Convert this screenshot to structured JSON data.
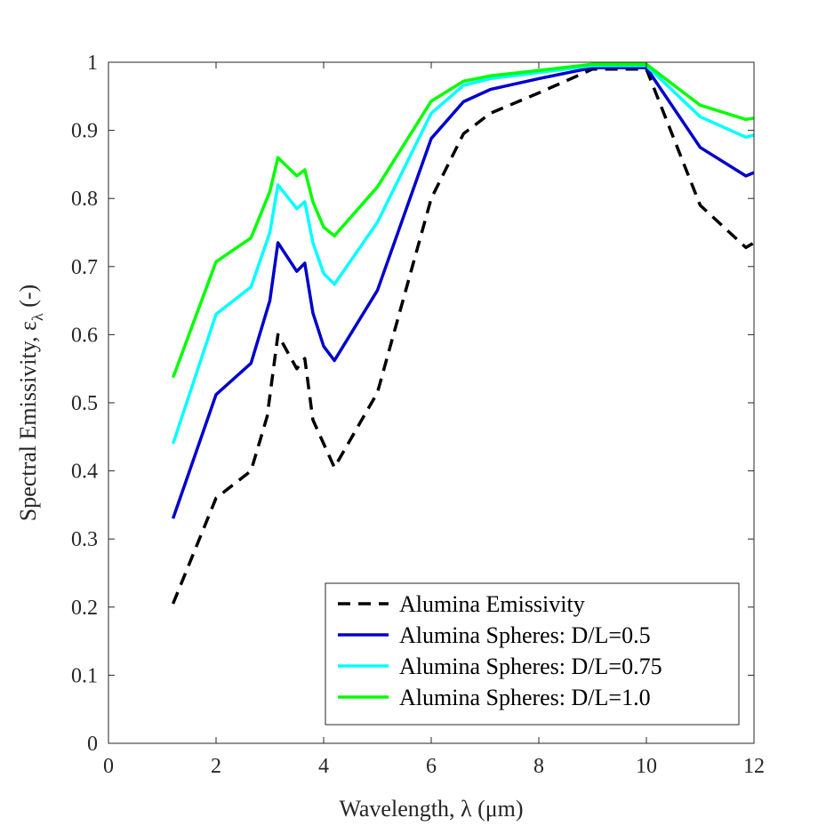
{
  "chart_data": {
    "type": "line",
    "xlabel": "Wavelength, λ (μm)",
    "ylabel_main": "Spectral Emissivity, ε",
    "ylabel_sub": "λ",
    "ylabel_suffix": " (-)",
    "xlim": [
      0,
      12
    ],
    "ylim": [
      0,
      1
    ],
    "x_ticks": [
      0,
      2,
      4,
      6,
      8,
      10,
      12
    ],
    "y_ticks": [
      0,
      0.1,
      0.2,
      0.3,
      0.4,
      0.5,
      0.6,
      0.7,
      0.8,
      0.9,
      1
    ],
    "legend_position": "bottom-right",
    "grid": false,
    "series": [
      {
        "name": "Alumina Emissivity",
        "color": "#000000",
        "dashed": true,
        "x": [
          1.2,
          2.0,
          2.65,
          2.95,
          3.15,
          3.5,
          3.65,
          3.8,
          4.0,
          4.2,
          5.0,
          6.0,
          6.6,
          7.1,
          8.0,
          9.0,
          10.0,
          11.0,
          11.85,
          12.0
        ],
        "y": [
          0.205,
          0.36,
          0.4,
          0.48,
          0.6,
          0.55,
          0.565,
          0.475,
          0.44,
          0.405,
          0.515,
          0.8,
          0.895,
          0.925,
          0.955,
          0.99,
          0.99,
          0.79,
          0.728,
          0.735
        ]
      },
      {
        "name": "Alumina Spheres: D/L=0.5",
        "color": "#0000cc",
        "dashed": false,
        "x": [
          1.2,
          2.0,
          2.65,
          3.0,
          3.15,
          3.5,
          3.65,
          3.8,
          4.0,
          4.2,
          5.0,
          6.0,
          6.6,
          7.1,
          8.0,
          9.0,
          10.0,
          11.0,
          11.85,
          12.0
        ],
        "y": [
          0.33,
          0.512,
          0.558,
          0.65,
          0.735,
          0.693,
          0.705,
          0.632,
          0.583,
          0.562,
          0.665,
          0.888,
          0.942,
          0.96,
          0.976,
          0.992,
          0.992,
          0.875,
          0.833,
          0.838
        ]
      },
      {
        "name": "Alumina Spheres: D/L=0.75",
        "color": "#00ffff",
        "dashed": false,
        "x": [
          1.2,
          2.0,
          2.65,
          3.0,
          3.15,
          3.5,
          3.65,
          3.8,
          4.0,
          4.2,
          5.0,
          6.0,
          6.6,
          7.1,
          8.0,
          9.0,
          10.0,
          11.0,
          11.85,
          12.0
        ],
        "y": [
          0.44,
          0.63,
          0.67,
          0.75,
          0.82,
          0.785,
          0.795,
          0.735,
          0.69,
          0.674,
          0.765,
          0.925,
          0.966,
          0.976,
          0.985,
          0.995,
          0.995,
          0.92,
          0.89,
          0.893
        ]
      },
      {
        "name": "Alumina Spheres: D/L=1.0",
        "color": "#00ff00",
        "dashed": false,
        "x": [
          1.2,
          2.0,
          2.65,
          3.0,
          3.15,
          3.5,
          3.65,
          3.8,
          4.0,
          4.2,
          5.0,
          6.0,
          6.6,
          7.1,
          8.0,
          9.0,
          10.0,
          11.0,
          11.85,
          12.0
        ],
        "y": [
          0.537,
          0.707,
          0.742,
          0.81,
          0.86,
          0.833,
          0.842,
          0.795,
          0.758,
          0.745,
          0.817,
          0.943,
          0.972,
          0.98,
          0.988,
          0.997,
          0.997,
          0.937,
          0.916,
          0.918
        ]
      }
    ]
  }
}
